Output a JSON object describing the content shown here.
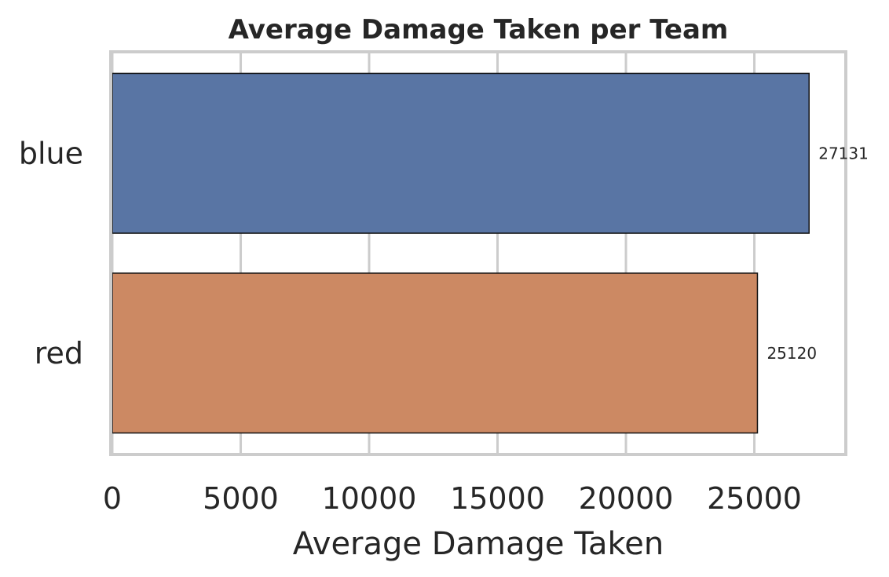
{
  "chart_data": {
    "type": "bar",
    "orientation": "horizontal",
    "title": "Average Damage Taken per Team",
    "xlabel": "Average Damage Taken",
    "ylabel": "",
    "categories": [
      "blue",
      "red"
    ],
    "values": [
      27131,
      25120
    ],
    "data_labels": [
      "27131",
      "25120"
    ],
    "colors": [
      "#5975a4",
      "#cc8963"
    ],
    "xlim": [
      0,
      28500
    ],
    "xticks": [
      0,
      5000,
      10000,
      15000,
      20000,
      25000
    ],
    "xtick_labels": [
      "0",
      "5000",
      "10000",
      "15000",
      "20000",
      "25000"
    ],
    "grid": "vertical",
    "legend": "none"
  }
}
